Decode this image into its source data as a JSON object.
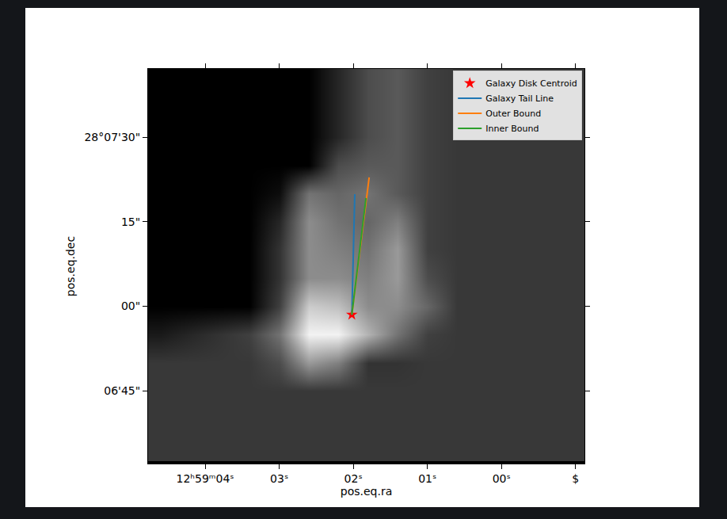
{
  "chart_data": {
    "type": "image",
    "x_label": "pos.eq.ra",
    "y_label": "pos.eq.dec",
    "xlim": [
      4.77,
      -1.12
    ],
    "ylim": [
      -27.9,
      42.1
    ],
    "xticks": [
      {
        "value": 4,
        "label": "12ʰ59ᵐ04ˢ"
      },
      {
        "value": 3,
        "label": "03ˢ"
      },
      {
        "value": 2,
        "label": "02ˢ"
      },
      {
        "value": 1,
        "label": "01ˢ"
      },
      {
        "value": 0,
        "label": "00ˢ"
      },
      {
        "value": -1,
        "label": "$"
      }
    ],
    "yticks": [
      {
        "value": 30,
        "label": "28°07'30\""
      },
      {
        "value": 15,
        "label": "15\""
      },
      {
        "value": 0,
        "label": "00\""
      },
      {
        "value": -15,
        "label": "06'45\""
      }
    ],
    "legend": "upper right",
    "image": {
      "x": [
        4.6,
        4.2,
        3.8,
        3.4,
        3.0,
        2.6,
        2.2,
        1.8,
        1.4,
        1.0,
        0.6,
        0.2,
        -0.2,
        -0.6,
        -1.0
      ],
      "y": [
        40,
        35,
        30,
        25,
        20,
        15,
        10,
        5,
        0,
        -5,
        -10,
        -15,
        -20,
        -25
      ],
      "zlim": [
        0,
        1
      ],
      "z": [
        [
          0,
          0,
          0,
          0,
          0,
          0,
          0.15,
          0.3,
          0.35,
          0.25,
          0.22,
          0.22,
          0.22,
          0.22,
          0.22
        ],
        [
          0,
          0,
          0,
          0,
          0,
          0,
          0.15,
          0.3,
          0.35,
          0.25,
          0.22,
          0.22,
          0.22,
          0.22,
          0.22
        ],
        [
          0,
          0,
          0,
          0,
          0,
          0,
          0.15,
          0.3,
          0.35,
          0.25,
          0.22,
          0.22,
          0.22,
          0.22,
          0.22
        ],
        [
          0,
          0,
          0,
          0,
          0,
          0,
          0.3,
          0.35,
          0.35,
          0.25,
          0.22,
          0.22,
          0.22,
          0.22,
          0.22
        ],
        [
          0,
          0,
          0,
          0,
          0.05,
          0.45,
          0.4,
          0.45,
          0.35,
          0.25,
          0.22,
          0.22,
          0.22,
          0.22,
          0.22
        ],
        [
          0,
          0,
          0,
          0,
          0.15,
          0.55,
          0.45,
          0.4,
          0.5,
          0.25,
          0.22,
          0.22,
          0.22,
          0.22,
          0.22
        ],
        [
          0,
          0,
          0,
          0,
          0.2,
          0.55,
          0.5,
          0.45,
          0.6,
          0.25,
          0.22,
          0.22,
          0.22,
          0.22,
          0.22
        ],
        [
          0,
          0,
          0,
          0,
          0.2,
          0.55,
          0.55,
          0.5,
          0.6,
          0.3,
          0.22,
          0.22,
          0.22,
          0.22,
          0.22
        ],
        [
          0,
          0,
          0,
          0,
          0.25,
          0.8,
          0.75,
          0.55,
          0.55,
          0.4,
          0.22,
          0.22,
          0.22,
          0.22,
          0.22
        ],
        [
          0.1,
          0.15,
          0.2,
          0.25,
          0.45,
          0.95,
          0.95,
          0.7,
          0.45,
          0.25,
          0.22,
          0.22,
          0.22,
          0.22,
          0.22
        ],
        [
          0.22,
          0.22,
          0.22,
          0.22,
          0.3,
          0.6,
          0.5,
          0.2,
          0.2,
          0.22,
          0.22,
          0.22,
          0.22,
          0.22,
          0.22
        ],
        [
          0.22,
          0.22,
          0.22,
          0.22,
          0.22,
          0.22,
          0.22,
          0.22,
          0.22,
          0.22,
          0.22,
          0.22,
          0.22,
          0.22,
          0.22
        ],
        [
          0.22,
          0.22,
          0.22,
          0.22,
          0.22,
          0.22,
          0.22,
          0.22,
          0.22,
          0.22,
          0.22,
          0.22,
          0.22,
          0.22,
          0.22
        ],
        [
          0.22,
          0.22,
          0.22,
          0.22,
          0.22,
          0.22,
          0.22,
          0.22,
          0.22,
          0.22,
          0.22,
          0.22,
          0.22,
          0.22,
          0.22
        ]
      ]
    },
    "series": [
      {
        "name": "Galaxy Disk Centroid",
        "type": "scatter",
        "marker": "star",
        "color": "red",
        "x": [
          2.02
        ],
        "y": [
          -1.5
        ]
      },
      {
        "name": "Galaxy Tail Line",
        "type": "line",
        "line_style": "solid",
        "color": "#1f77b4",
        "x": [
          2.02,
          1.98
        ],
        "y": [
          -1.5,
          19.9
        ]
      },
      {
        "name": "Outer Bound",
        "type": "line",
        "line_style": "solid",
        "color": "#ff7f0e",
        "x": [
          2.02,
          1.786
        ],
        "y": [
          -1.5,
          22.85
        ]
      },
      {
        "name": "Inner Bound",
        "type": "line",
        "line_style": "solid",
        "color": "#2ca02c",
        "x": [
          2.02,
          1.829
        ],
        "y": [
          -1.5,
          19.2
        ]
      }
    ]
  }
}
